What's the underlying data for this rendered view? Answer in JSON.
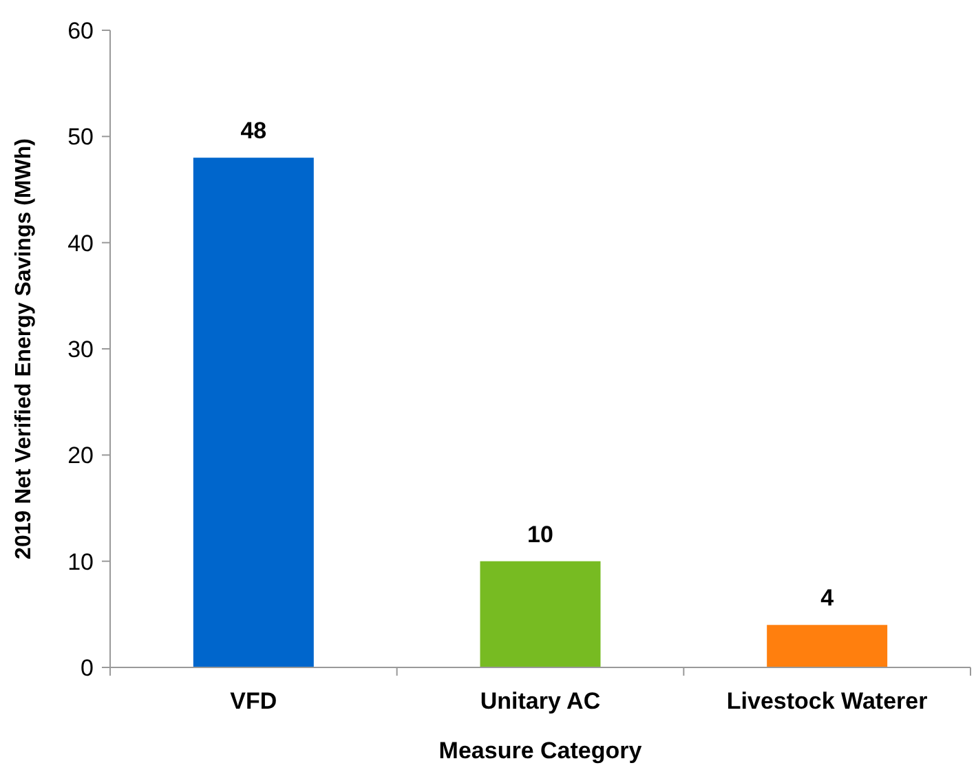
{
  "chart_data": {
    "type": "bar",
    "xlabel": "Measure Category",
    "ylabel": "2019 Net Verified Energy Savings (MWh)",
    "categories": [
      "VFD",
      "Unitary AC",
      "Livestock Waterer"
    ],
    "values": [
      48,
      10,
      4
    ],
    "colors": [
      "#0066cc",
      "#77bb22",
      "#ff7f0e"
    ],
    "ylim": [
      0,
      60
    ],
    "yticks": [
      0,
      10,
      20,
      30,
      40,
      50,
      60
    ],
    "grid": false,
    "data_labels": true
  }
}
